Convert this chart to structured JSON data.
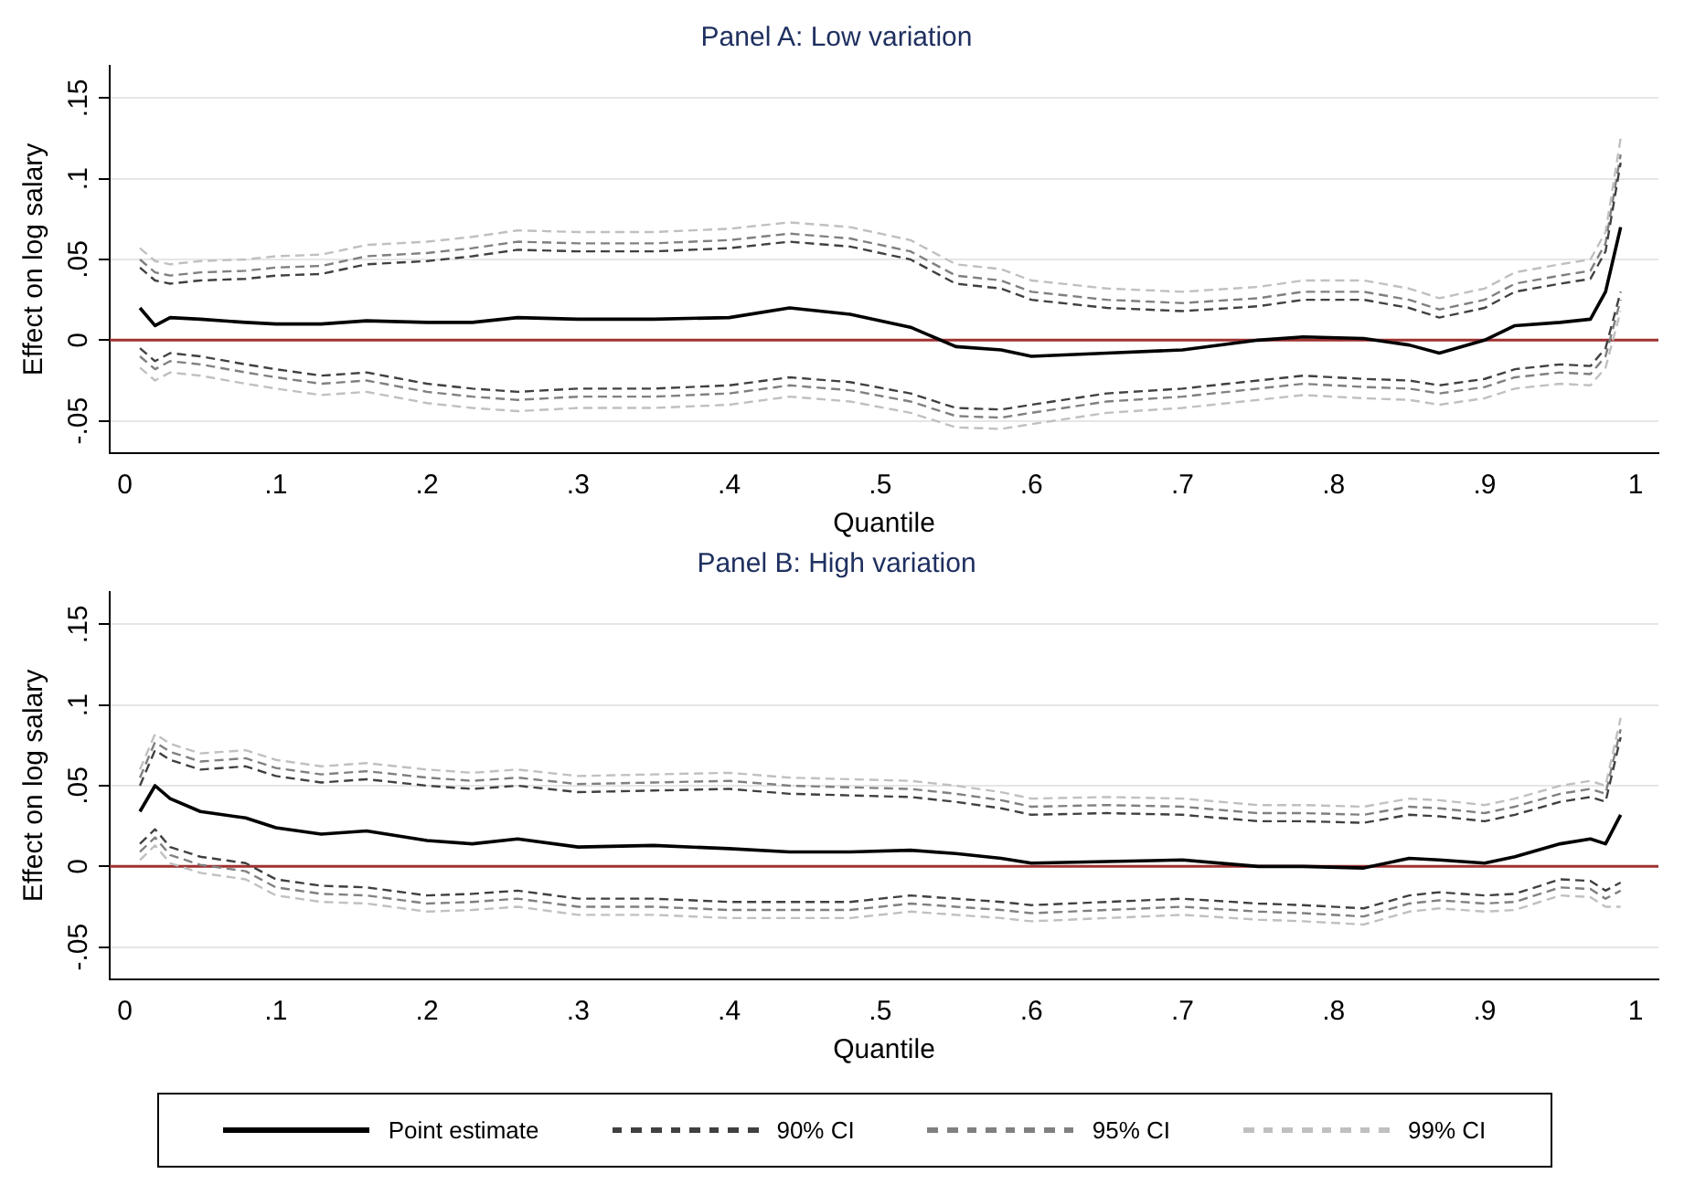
{
  "chart_data": [
    {
      "type": "line",
      "title": "Panel A: Low variation",
      "xlabel": "Quantile",
      "ylabel": "Effect on log salary",
      "x": [
        0.01,
        0.02,
        0.03,
        0.05,
        0.08,
        0.1,
        0.13,
        0.16,
        0.2,
        0.23,
        0.26,
        0.3,
        0.35,
        0.4,
        0.44,
        0.48,
        0.52,
        0.55,
        0.58,
        0.6,
        0.65,
        0.7,
        0.75,
        0.78,
        0.82,
        0.85,
        0.87,
        0.9,
        0.92,
        0.95,
        0.97,
        0.98,
        0.99
      ],
      "xlim": [
        -0.01,
        1.015
      ],
      "xticks": [
        {
          "value": 0,
          "label": "0"
        },
        {
          "value": 0.1,
          "label": ".1"
        },
        {
          "value": 0.2,
          "label": ".2"
        },
        {
          "value": 0.3,
          "label": ".3"
        },
        {
          "value": 0.4,
          "label": ".4"
        },
        {
          "value": 0.5,
          "label": ".5"
        },
        {
          "value": 0.6,
          "label": ".6"
        },
        {
          "value": 0.7,
          "label": ".7"
        },
        {
          "value": 0.8,
          "label": ".8"
        },
        {
          "value": 0.9,
          "label": ".9"
        },
        {
          "value": 1,
          "label": "1"
        }
      ],
      "ylim": [
        -0.07,
        0.17
      ],
      "yticks": [
        {
          "value": -0.05,
          "label": "-.05"
        },
        {
          "value": 0,
          "label": "0"
        },
        {
          "value": 0.05,
          "label": ".05"
        },
        {
          "value": 0.1,
          "label": ".1"
        },
        {
          "value": 0.15,
          "label": ".15"
        }
      ],
      "grid": "y",
      "legend": false,
      "ref_lines": [
        {
          "axis": "y",
          "value": 0,
          "color": "#a03030"
        }
      ],
      "series": [
        {
          "color": "#000000",
          "line_style": "solid",
          "values": [
            0.02,
            0.009,
            0.014,
            0.013,
            0.011,
            0.01,
            0.01,
            0.012,
            0.011,
            0.011,
            0.014,
            0.013,
            0.013,
            0.014,
            0.02,
            0.016,
            0.008,
            -0.004,
            -0.006,
            -0.01,
            -0.008,
            -0.006,
            0.0,
            0.002,
            0.001,
            -0.003,
            -0.008,
            0.0,
            0.009,
            0.011,
            0.013,
            0.03,
            0.07
          ]
        },
        {
          "color": "#404040",
          "line_style": "dashed",
          "values": [
            0.045,
            0.037,
            0.035,
            0.037,
            0.038,
            0.04,
            0.041,
            0.047,
            0.049,
            0.052,
            0.056,
            0.055,
            0.055,
            0.057,
            0.061,
            0.058,
            0.05,
            0.035,
            0.032,
            0.025,
            0.02,
            0.018,
            0.021,
            0.025,
            0.025,
            0.02,
            0.014,
            0.02,
            0.03,
            0.035,
            0.038,
            0.055,
            0.11
          ]
        },
        {
          "color": "#404040",
          "line_style": "dashed",
          "values": [
            -0.005,
            -0.013,
            -0.008,
            -0.01,
            -0.015,
            -0.018,
            -0.022,
            -0.02,
            -0.027,
            -0.03,
            -0.032,
            -0.03,
            -0.03,
            -0.028,
            -0.023,
            -0.026,
            -0.033,
            -0.042,
            -0.043,
            -0.04,
            -0.033,
            -0.03,
            -0.025,
            -0.022,
            -0.024,
            -0.025,
            -0.028,
            -0.024,
            -0.018,
            -0.015,
            -0.016,
            -0.005,
            0.03
          ]
        },
        {
          "color": "#808080",
          "line_style": "dashed",
          "values": [
            0.05,
            0.042,
            0.04,
            0.042,
            0.043,
            0.045,
            0.046,
            0.052,
            0.054,
            0.057,
            0.061,
            0.06,
            0.06,
            0.062,
            0.066,
            0.063,
            0.055,
            0.04,
            0.037,
            0.03,
            0.025,
            0.023,
            0.026,
            0.03,
            0.03,
            0.025,
            0.019,
            0.025,
            0.035,
            0.04,
            0.043,
            0.06,
            0.115
          ]
        },
        {
          "color": "#808080",
          "line_style": "dashed",
          "values": [
            -0.01,
            -0.018,
            -0.013,
            -0.015,
            -0.02,
            -0.023,
            -0.027,
            -0.025,
            -0.032,
            -0.035,
            -0.037,
            -0.035,
            -0.035,
            -0.033,
            -0.028,
            -0.031,
            -0.038,
            -0.047,
            -0.048,
            -0.045,
            -0.038,
            -0.035,
            -0.03,
            -0.027,
            -0.029,
            -0.03,
            -0.033,
            -0.029,
            -0.023,
            -0.02,
            -0.021,
            -0.01,
            0.025
          ]
        },
        {
          "color": "#c0c0c0",
          "line_style": "dashed",
          "values": [
            0.057,
            0.049,
            0.047,
            0.049,
            0.05,
            0.052,
            0.053,
            0.059,
            0.061,
            0.064,
            0.068,
            0.067,
            0.067,
            0.069,
            0.073,
            0.07,
            0.062,
            0.047,
            0.044,
            0.037,
            0.032,
            0.03,
            0.033,
            0.037,
            0.037,
            0.032,
            0.026,
            0.032,
            0.042,
            0.047,
            0.05,
            0.067,
            0.125
          ]
        },
        {
          "color": "#c0c0c0",
          "line_style": "dashed",
          "values": [
            -0.017,
            -0.025,
            -0.02,
            -0.022,
            -0.027,
            -0.03,
            -0.034,
            -0.032,
            -0.039,
            -0.042,
            -0.044,
            -0.042,
            -0.042,
            -0.04,
            -0.035,
            -0.038,
            -0.045,
            -0.054,
            -0.055,
            -0.052,
            -0.045,
            -0.042,
            -0.037,
            -0.034,
            -0.036,
            -0.037,
            -0.04,
            -0.036,
            -0.03,
            -0.027,
            -0.028,
            -0.017,
            0.018
          ]
        }
      ]
    },
    {
      "type": "line",
      "title": "Panel B: High variation",
      "xlabel": "Quantile",
      "ylabel": "Effect on log salary",
      "x": [
        0.01,
        0.02,
        0.03,
        0.05,
        0.08,
        0.1,
        0.13,
        0.16,
        0.2,
        0.23,
        0.26,
        0.3,
        0.35,
        0.4,
        0.44,
        0.48,
        0.52,
        0.55,
        0.58,
        0.6,
        0.65,
        0.7,
        0.75,
        0.78,
        0.82,
        0.85,
        0.87,
        0.9,
        0.92,
        0.95,
        0.97,
        0.98,
        0.99
      ],
      "xlim": [
        -0.01,
        1.015
      ],
      "xticks": [
        {
          "value": 0,
          "label": "0"
        },
        {
          "value": 0.1,
          "label": ".1"
        },
        {
          "value": 0.2,
          "label": ".2"
        },
        {
          "value": 0.3,
          "label": ".3"
        },
        {
          "value": 0.4,
          "label": ".4"
        },
        {
          "value": 0.5,
          "label": ".5"
        },
        {
          "value": 0.6,
          "label": ".6"
        },
        {
          "value": 0.7,
          "label": ".7"
        },
        {
          "value": 0.8,
          "label": ".8"
        },
        {
          "value": 0.9,
          "label": ".9"
        },
        {
          "value": 1,
          "label": "1"
        }
      ],
      "ylim": [
        -0.07,
        0.17
      ],
      "yticks": [
        {
          "value": -0.05,
          "label": "-.05"
        },
        {
          "value": 0,
          "label": "0"
        },
        {
          "value": 0.05,
          "label": ".05"
        },
        {
          "value": 0.1,
          "label": ".1"
        },
        {
          "value": 0.15,
          "label": ".15"
        }
      ],
      "grid": "y",
      "legend": "bottom",
      "ref_lines": [
        {
          "axis": "y",
          "value": 0,
          "color": "#a03030"
        }
      ],
      "series": [
        {
          "name": "Point estimate",
          "color": "#000000",
          "line_style": "solid",
          "values": [
            0.034,
            0.05,
            0.042,
            0.034,
            0.03,
            0.024,
            0.02,
            0.022,
            0.016,
            0.014,
            0.017,
            0.012,
            0.013,
            0.011,
            0.009,
            0.009,
            0.01,
            0.008,
            0.005,
            0.002,
            0.003,
            0.004,
            0.0,
            0.0,
            -0.001,
            0.005,
            0.004,
            0.002,
            0.006,
            0.014,
            0.017,
            0.014,
            0.032
          ]
        },
        {
          "name": "90% CI",
          "color": "#404040",
          "line_style": "dashed",
          "values": [
            0.05,
            0.072,
            0.066,
            0.06,
            0.062,
            0.056,
            0.052,
            0.054,
            0.05,
            0.048,
            0.05,
            0.046,
            0.047,
            0.048,
            0.045,
            0.044,
            0.043,
            0.04,
            0.036,
            0.032,
            0.033,
            0.032,
            0.028,
            0.028,
            0.027,
            0.032,
            0.031,
            0.028,
            0.032,
            0.04,
            0.043,
            0.04,
            0.08
          ]
        },
        {
          "color": "#404040",
          "line_style": "dashed",
          "values": [
            0.014,
            0.023,
            0.012,
            0.006,
            0.002,
            -0.008,
            -0.012,
            -0.013,
            -0.018,
            -0.017,
            -0.015,
            -0.02,
            -0.02,
            -0.022,
            -0.022,
            -0.022,
            -0.018,
            -0.02,
            -0.022,
            -0.024,
            -0.022,
            -0.02,
            -0.023,
            -0.024,
            -0.026,
            -0.018,
            -0.016,
            -0.018,
            -0.017,
            -0.008,
            -0.009,
            -0.015,
            -0.01
          ]
        },
        {
          "name": "95% CI",
          "color": "#808080",
          "line_style": "dashed",
          "values": [
            0.055,
            0.077,
            0.071,
            0.065,
            0.067,
            0.061,
            0.057,
            0.059,
            0.055,
            0.053,
            0.055,
            0.051,
            0.052,
            0.053,
            0.05,
            0.049,
            0.048,
            0.045,
            0.041,
            0.037,
            0.038,
            0.037,
            0.033,
            0.033,
            0.032,
            0.037,
            0.036,
            0.033,
            0.037,
            0.045,
            0.048,
            0.045,
            0.085
          ]
        },
        {
          "color": "#808080",
          "line_style": "dashed",
          "values": [
            0.009,
            0.018,
            0.007,
            0.001,
            -0.003,
            -0.013,
            -0.017,
            -0.018,
            -0.023,
            -0.022,
            -0.02,
            -0.025,
            -0.025,
            -0.027,
            -0.027,
            -0.027,
            -0.023,
            -0.025,
            -0.027,
            -0.029,
            -0.027,
            -0.025,
            -0.028,
            -0.029,
            -0.031,
            -0.023,
            -0.021,
            -0.023,
            -0.022,
            -0.013,
            -0.014,
            -0.02,
            -0.015
          ]
        },
        {
          "name": "99% CI",
          "color": "#c0c0c0",
          "line_style": "dashed",
          "values": [
            0.06,
            0.082,
            0.076,
            0.07,
            0.072,
            0.066,
            0.062,
            0.064,
            0.06,
            0.058,
            0.06,
            0.056,
            0.057,
            0.058,
            0.055,
            0.054,
            0.053,
            0.05,
            0.046,
            0.042,
            0.043,
            0.042,
            0.038,
            0.038,
            0.037,
            0.042,
            0.041,
            0.038,
            0.042,
            0.05,
            0.053,
            0.05,
            0.092
          ]
        },
        {
          "color": "#c0c0c0",
          "line_style": "dashed",
          "values": [
            0.004,
            0.013,
            0.002,
            -0.004,
            -0.008,
            -0.018,
            -0.022,
            -0.023,
            -0.028,
            -0.027,
            -0.025,
            -0.03,
            -0.03,
            -0.032,
            -0.032,
            -0.032,
            -0.028,
            -0.03,
            -0.032,
            -0.034,
            -0.032,
            -0.03,
            -0.033,
            -0.034,
            -0.036,
            -0.028,
            -0.026,
            -0.028,
            -0.027,
            -0.018,
            -0.019,
            -0.025,
            -0.025
          ]
        }
      ]
    }
  ]
}
